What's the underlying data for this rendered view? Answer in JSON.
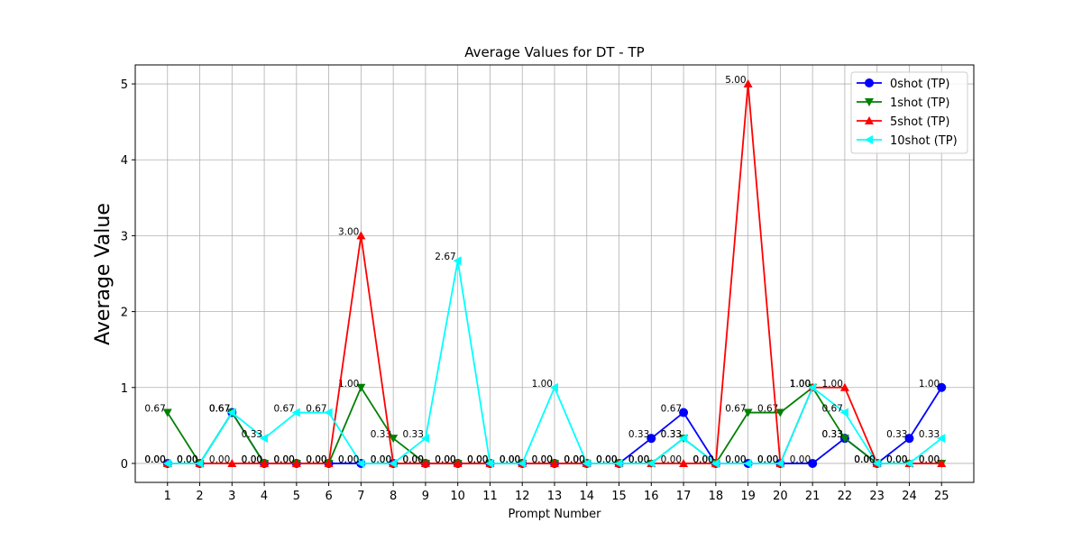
{
  "chart_data": {
    "type": "line",
    "title": "Average Values for DT - TP",
    "xlabel": "Prompt Number",
    "ylabel": "Average Value",
    "x": [
      1,
      2,
      3,
      4,
      5,
      6,
      7,
      8,
      9,
      10,
      11,
      12,
      13,
      14,
      15,
      16,
      17,
      18,
      19,
      20,
      21,
      22,
      23,
      24,
      25
    ],
    "xlim": [
      0.0,
      26.0
    ],
    "ylim": [
      -0.25,
      5.25
    ],
    "yticks": [
      0,
      1,
      2,
      3,
      4,
      5
    ],
    "grid": true,
    "legend_position": "top-right",
    "series": [
      {
        "name": "0shot (TP)",
        "color": "#0000ff",
        "marker": "circle",
        "values": [
          0,
          0,
          0.67,
          0,
          0,
          0,
          0,
          0,
          0,
          0,
          0,
          0,
          0,
          0,
          0,
          0.33,
          0.67,
          0,
          0,
          0,
          0,
          0.33,
          0,
          0.33,
          1.0
        ],
        "labels": [
          "0.00",
          "0.00",
          "0.67",
          "0.00",
          "0.00",
          "0.00",
          "0.00",
          "0.00",
          "0.00",
          "0.00",
          "0.00",
          "0.00",
          "0.00",
          "0.00",
          "0.00",
          "0.33",
          "0.67",
          "0.00",
          "0.00",
          "0.00",
          "0.00",
          "0.33",
          "0.00",
          "0.33",
          "1.00"
        ]
      },
      {
        "name": "1shot (TP)",
        "color": "#008000",
        "marker": "triangle-down",
        "values": [
          0.67,
          0,
          0.67,
          0,
          0,
          0,
          1.0,
          0.33,
          0,
          0,
          0,
          0,
          0,
          0,
          0,
          0,
          0.33,
          0,
          0.67,
          0.67,
          1.0,
          0.33,
          0,
          0,
          0
        ],
        "labels": [
          "0.67",
          "0.00",
          "0.67",
          "0.00",
          "0.00",
          "0.00",
          "1.00",
          "0.33",
          "0.00",
          "0.00",
          "0.00",
          "0.00",
          "0.00",
          "0.00",
          "0.00",
          "0.00",
          "0.33",
          "0.00",
          "0.67",
          "0.67",
          "1.00",
          "0.33",
          "0.00",
          "0.00",
          "0.00"
        ]
      },
      {
        "name": "5shot (TP)",
        "color": "#ff0000",
        "marker": "triangle-up",
        "values": [
          0,
          0,
          0,
          0,
          0,
          0,
          3.0,
          0,
          0,
          0,
          0,
          0,
          0,
          0,
          0,
          0,
          0,
          0,
          5.0,
          0,
          1.0,
          1.0,
          0,
          0,
          0
        ],
        "labels": [
          "0.00",
          "0.00",
          "0.00",
          "0.00",
          "0.00",
          "0.00",
          "3.00",
          "0.00",
          "0.00",
          "0.00",
          "0.00",
          "0.00",
          "0.00",
          "0.00",
          "0.00",
          "0.00",
          "0.00",
          "0.00",
          "5.00",
          "0.00",
          "1.00",
          "1.00",
          "0.00",
          "0.00",
          "0.00"
        ]
      },
      {
        "name": "10shot (TP)",
        "color": "#00ffff",
        "marker": "triangle-left",
        "values": [
          0,
          0,
          0.67,
          0.33,
          0.67,
          0.67,
          0,
          0,
          0.33,
          2.67,
          0,
          0,
          1.0,
          0,
          0,
          0,
          0.33,
          0,
          0,
          0,
          1.0,
          0.67,
          0,
          0,
          0.33
        ],
        "labels": [
          "0.00",
          "0.00",
          "0.67",
          "0.33",
          "0.67",
          "0.67",
          "0.00",
          "0.00",
          "0.33",
          "2.67",
          "0.00",
          "0.00",
          "1.00",
          "0.00",
          "0.00",
          "0.00",
          "0.33",
          "0.00",
          "0.00",
          "0.00",
          "1.00",
          "0.67",
          "0.00",
          "0.00",
          "0.33"
        ]
      }
    ]
  }
}
